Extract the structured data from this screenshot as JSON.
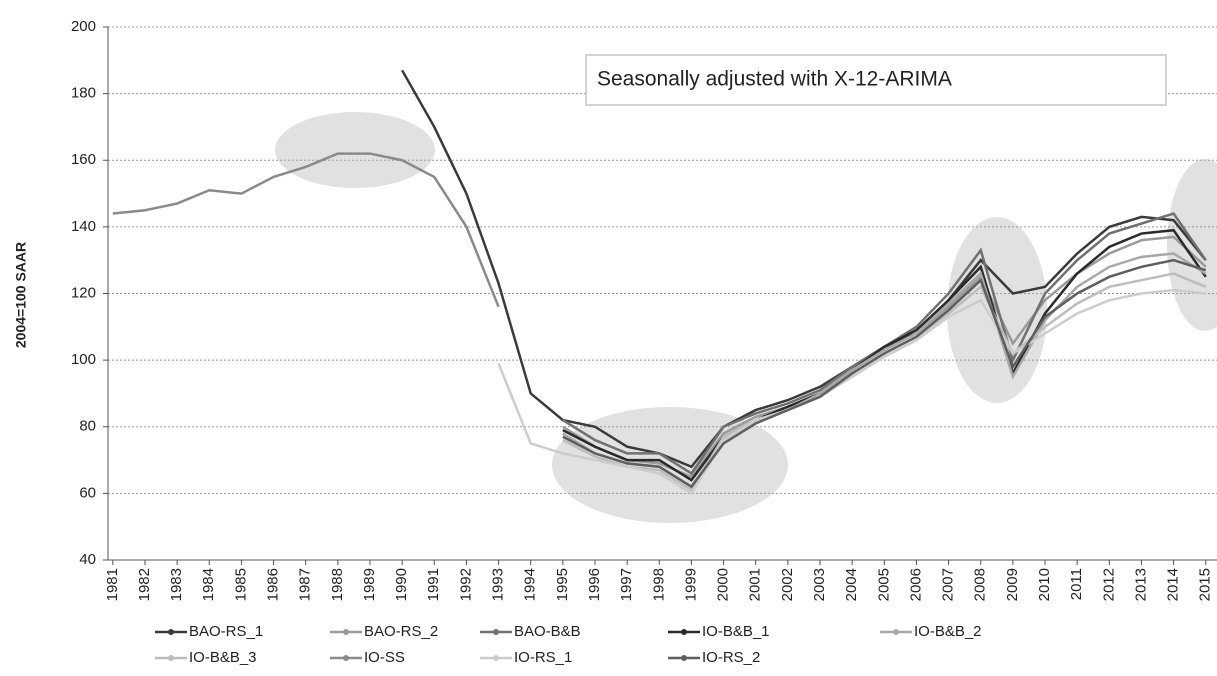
{
  "chart_data": {
    "type": "line",
    "annotation": "Seasonally adjusted with X-12-ARIMA",
    "y_label": "2004=100 SAAR",
    "x": [
      1981,
      1982,
      1983,
      1984,
      1985,
      1986,
      1987,
      1988,
      1989,
      1990,
      1991,
      1992,
      1993,
      1994,
      1995,
      1996,
      1997,
      1998,
      1999,
      2000,
      2001,
      2002,
      2003,
      2004,
      2005,
      2006,
      2007,
      2008,
      2009,
      2010,
      2011,
      2012,
      2013,
      2014,
      2015
    ],
    "xlim": [
      1980.85,
      2015.35
    ],
    "xticks": [
      1981,
      1982,
      1983,
      1984,
      1985,
      1986,
      1987,
      1988,
      1989,
      1990,
      1991,
      1992,
      1993,
      1994,
      1995,
      1996,
      1997,
      1998,
      1999,
      2000,
      2001,
      2002,
      2003,
      2004,
      2005,
      2006,
      2007,
      2008,
      2009,
      2010,
      2011,
      2012,
      2013,
      2014,
      2015
    ],
    "ylim": [
      40,
      200
    ],
    "yticks": [
      40,
      60,
      80,
      100,
      120,
      140,
      160,
      180,
      200
    ],
    "grid": true,
    "legend": "bottom",
    "series": [
      {
        "name": "BAO-RS_1",
        "color": "#3a3a3a",
        "values": [
          null,
          null,
          null,
          null,
          null,
          null,
          null,
          null,
          null,
          187,
          170,
          150,
          123,
          90,
          82,
          80,
          74,
          72,
          68,
          80,
          85,
          88,
          92,
          98,
          104,
          108,
          118,
          130,
          120,
          122,
          132,
          140,
          143,
          142,
          130
        ]
      },
      {
        "name": "BAO-RS_2",
        "color": "#9a9a9a",
        "values": [
          null,
          null,
          null,
          null,
          null,
          null,
          null,
          null,
          null,
          null,
          null,
          null,
          null,
          null,
          80,
          74,
          70,
          69,
          65,
          78,
          83,
          86,
          90,
          97,
          103,
          108,
          116,
          125,
          105,
          118,
          126,
          132,
          136,
          137,
          128
        ]
      },
      {
        "name": "BAO-B&B",
        "color": "#707070",
        "values": [
          null,
          null,
          null,
          null,
          null,
          null,
          null,
          null,
          null,
          null,
          null,
          null,
          null,
          null,
          82,
          76,
          72,
          72,
          66,
          80,
          84,
          87,
          91,
          98,
          104,
          110,
          120,
          133,
          100,
          120,
          130,
          138,
          141,
          144,
          130
        ]
      },
      {
        "name": "IO-B&B_1",
        "color": "#2a2a2a",
        "values": [
          null,
          null,
          null,
          null,
          null,
          null,
          null,
          null,
          null,
          null,
          null,
          null,
          null,
          null,
          79,
          74,
          70,
          70,
          64,
          77,
          82,
          86,
          90,
          97,
          104,
          109,
          118,
          128,
          96,
          114,
          126,
          134,
          138,
          139,
          125
        ]
      },
      {
        "name": "IO-B&B_2",
        "color": "#a8a8a8",
        "values": [
          null,
          null,
          null,
          null,
          null,
          null,
          null,
          null,
          null,
          null,
          null,
          null,
          null,
          null,
          78,
          72,
          69,
          68,
          62,
          76,
          82,
          85,
          90,
          97,
          103,
          108,
          117,
          126,
          95,
          112,
          122,
          128,
          131,
          132,
          126
        ]
      },
      {
        "name": "IO-B&B_3",
        "color": "#bdbdbd",
        "values": [
          null,
          null,
          null,
          null,
          null,
          null,
          null,
          null,
          null,
          null,
          null,
          null,
          null,
          null,
          76,
          71,
          68,
          67,
          61,
          77,
          82,
          85,
          89,
          96,
          102,
          107,
          114,
          122,
          102,
          110,
          117,
          122,
          124,
          126,
          122
        ]
      },
      {
        "name": "IO-SS",
        "color": "#8a8a8a",
        "values": [
          144,
          145,
          147,
          151,
          150,
          155,
          158,
          162,
          162,
          160,
          155,
          140,
          116,
          null,
          null,
          null,
          null,
          null,
          null,
          null,
          null,
          null,
          null,
          null,
          null,
          null,
          null,
          null,
          null,
          null,
          null,
          null,
          null,
          null,
          null
        ]
      },
      {
        "name": "IO-RS_1",
        "color": "#cccccc",
        "values": [
          null,
          null,
          null,
          null,
          null,
          null,
          null,
          null,
          null,
          null,
          null,
          null,
          99,
          75,
          72,
          70,
          68,
          66,
          60,
          76,
          82,
          85,
          89,
          95,
          101,
          106,
          113,
          118,
          102,
          108,
          114,
          118,
          120,
          121,
          120
        ]
      },
      {
        "name": "IO-RS_2",
        "color": "#5e5e5e",
        "values": [
          null,
          null,
          null,
          null,
          null,
          null,
          null,
          null,
          null,
          null,
          null,
          null,
          null,
          null,
          77,
          72,
          69,
          68,
          62,
          75,
          81,
          85,
          89,
          96,
          102,
          107,
          115,
          124,
          98,
          113,
          120,
          125,
          128,
          130,
          127
        ]
      }
    ]
  }
}
